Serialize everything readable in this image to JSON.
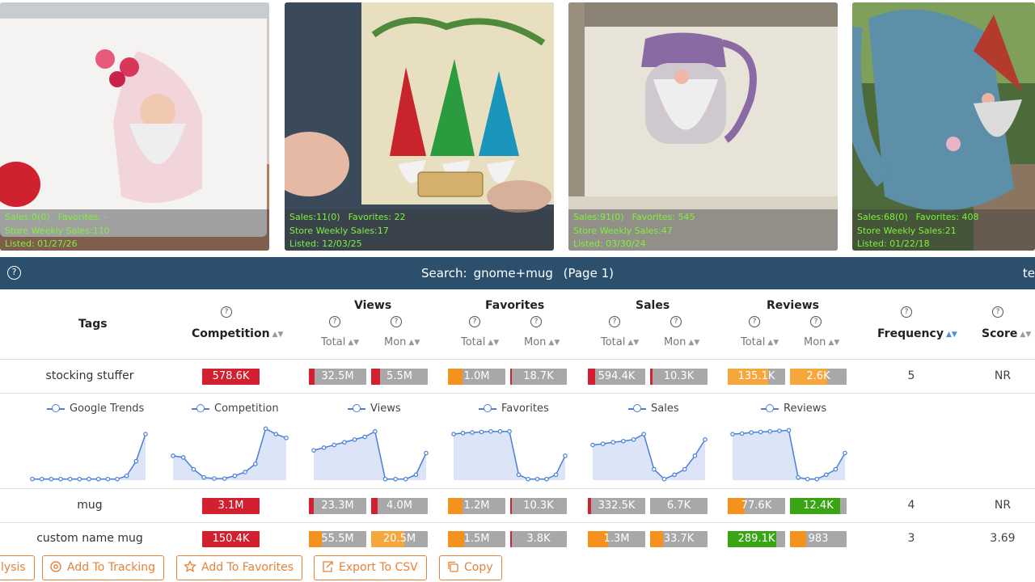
{
  "cards": [
    {
      "sales": "Sales:0(0)",
      "favorites": "Favorites: -",
      "store_weekly": "Store Weekly Sales:110",
      "listed": "Listed: 01/27/26"
    },
    {
      "sales": "Sales:11(0)",
      "favorites": "Favorites: 22",
      "store_weekly": "Store Weekly Sales:17",
      "listed": "Listed: 12/03/25"
    },
    {
      "sales": "Sales:91(0)",
      "favorites": "Favorites: 545",
      "store_weekly": "Store Weekly Sales:47",
      "listed": "Listed: 03/30/24"
    },
    {
      "sales": "Sales:68(0)",
      "favorites": "Favorites: 408",
      "store_weekly": "Store Weekly Sales:21",
      "listed": "Listed: 01/22/18"
    }
  ],
  "search": {
    "help": "?",
    "label": "Search:",
    "query": "gnome+mug",
    "page": "(Page 1)",
    "clipped": "te"
  },
  "header": {
    "tags": "Tags",
    "competition": "Competition",
    "views": "Views",
    "favorites": "Favorites",
    "sales": "Sales",
    "reviews": "Reviews",
    "frequency": "Frequency",
    "score": "Score",
    "total": "Total",
    "mon": "Mon",
    "help": "?"
  },
  "rows": [
    {
      "tag": "stocking stuffer",
      "competition": "578.6K",
      "views_total": "32.5M",
      "views_mon": "5.5M",
      "fav_total": "1.0M",
      "fav_mon": "18.7K",
      "sales_total": "594.4K",
      "sales_mon": "10.3K",
      "rev_total": "135.1K",
      "rev_mon": "2.6K",
      "frequency": "5",
      "score": "NR"
    },
    {
      "tag": "mug",
      "competition": "3.1M",
      "views_total": "23.3M",
      "views_mon": "4.0M",
      "fav_total": "1.2M",
      "fav_mon": "10.3K",
      "sales_total": "332.5K",
      "sales_mon": "6.7K",
      "rev_total": "77.6K",
      "rev_mon": "12.4K",
      "frequency": "4",
      "score": "NR"
    },
    {
      "tag": "custom name mug",
      "competition": "150.4K",
      "views_total": "55.5M",
      "views_mon": "20.5M",
      "fav_total": "1.5M",
      "fav_mon": "3.8K",
      "sales_total": "1.3M",
      "sales_mon": "33.7K",
      "rev_total": "289.1K",
      "rev_mon": "983",
      "frequency": "3",
      "score": "3.69"
    }
  ],
  "trends": {
    "legends": [
      "Google Trends",
      "Competition",
      "Views",
      "Favorites",
      "Sales",
      "Reviews"
    ],
    "series": [
      [
        0.02,
        0.02,
        0.02,
        0.02,
        0.02,
        0.02,
        0.02,
        0.02,
        0.02,
        0.02,
        0.08,
        0.35,
        0.85
      ],
      [
        0.45,
        0.42,
        0.2,
        0.05,
        0.03,
        0.03,
        0.08,
        0.15,
        0.3,
        0.95,
        0.85,
        0.78
      ],
      [
        0.55,
        0.6,
        0.65,
        0.7,
        0.75,
        0.8,
        0.9,
        0.02,
        0.02,
        0.02,
        0.1,
        0.5
      ],
      [
        0.85,
        0.87,
        0.88,
        0.89,
        0.9,
        0.9,
        0.9,
        0.1,
        0.02,
        0.02,
        0.02,
        0.1,
        0.45
      ],
      [
        0.65,
        0.67,
        0.7,
        0.72,
        0.75,
        0.85,
        0.2,
        0.02,
        0.1,
        0.2,
        0.45,
        0.75
      ],
      [
        0.85,
        0.86,
        0.88,
        0.89,
        0.9,
        0.91,
        0.92,
        0.05,
        0.02,
        0.02,
        0.1,
        0.2,
        0.5
      ]
    ]
  },
  "toolbar": {
    "analysis": "lysis",
    "tracking": "Add To Tracking",
    "favorites": "Add To Favorites",
    "export": "Export To CSV",
    "copy": "Copy"
  },
  "colors": {
    "header_bar": "#2c4f6e",
    "accent": "#e3833a",
    "red": "#d32030",
    "orange": "#f5921e",
    "green": "#3aa514",
    "grey": "#a8a8a8",
    "sales_overlay_text": "#7cf23a"
  }
}
